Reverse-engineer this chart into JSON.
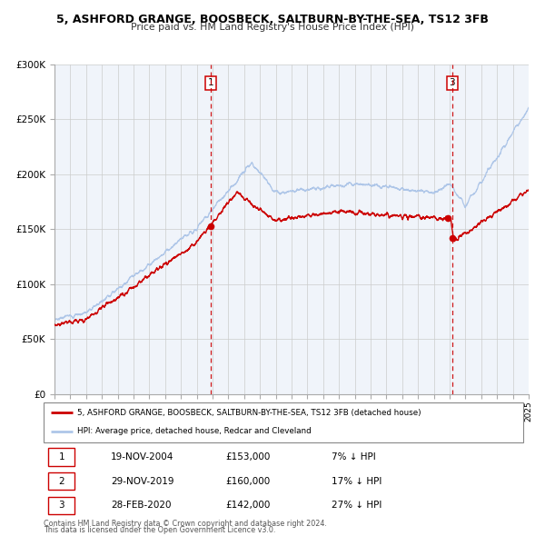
{
  "title": "5, ASHFORD GRANGE, BOOSBECK, SALTBURN-BY-THE-SEA, TS12 3FB",
  "subtitle": "Price paid vs. HM Land Registry's House Price Index (HPI)",
  "background_color": "#ffffff",
  "plot_bg_color": "#f0f4fa",
  "grid_color": "#cccccc",
  "hpi_color": "#aec6e8",
  "property_color": "#cc0000",
  "ylim": [
    0,
    300000
  ],
  "yticks": [
    0,
    50000,
    100000,
    150000,
    200000,
    250000,
    300000
  ],
  "ytick_labels": [
    "£0",
    "£50K",
    "£100K",
    "£150K",
    "£200K",
    "£250K",
    "£300K"
  ],
  "x_start_year": 1995,
  "x_end_year": 2025,
  "sale_points": [
    {
      "date_num": 2004.89,
      "price": 153000,
      "label": "1"
    },
    {
      "date_num": 2019.91,
      "price": 160000,
      "label": "2"
    },
    {
      "date_num": 2020.16,
      "price": 142000,
      "label": "3"
    }
  ],
  "vline_dates": [
    2004.89,
    2020.16
  ],
  "vline_labels": [
    "1",
    "3"
  ],
  "legend_property_label": "5, ASHFORD GRANGE, BOOSBECK, SALTBURN-BY-THE-SEA, TS12 3FB (detached house)",
  "legend_hpi_label": "HPI: Average price, detached house, Redcar and Cleveland",
  "table_rows": [
    [
      "1",
      "19-NOV-2004",
      "£153,000",
      "7% ↓ HPI"
    ],
    [
      "2",
      "29-NOV-2019",
      "£160,000",
      "17% ↓ HPI"
    ],
    [
      "3",
      "28-FEB-2020",
      "£142,000",
      "27% ↓ HPI"
    ]
  ],
  "footnote1": "Contains HM Land Registry data © Crown copyright and database right 2024.",
  "footnote2": "This data is licensed under the Open Government Licence v3.0."
}
